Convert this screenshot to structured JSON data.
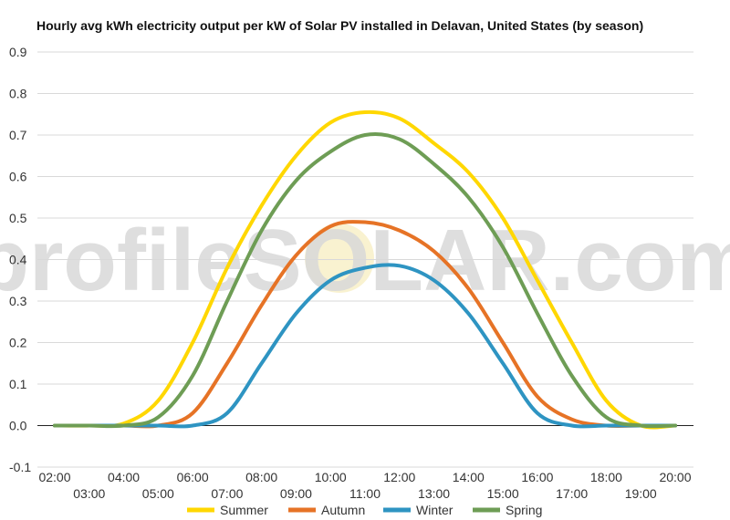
{
  "chart_data": {
    "type": "line",
    "title": "Hourly avg kWh electricity output per kW of Solar PV installed in Delavan, United States (by season)",
    "watermark": "profileSOLAR.com",
    "x": [
      "02:00",
      "03:00",
      "04:00",
      "05:00",
      "06:00",
      "07:00",
      "08:00",
      "09:00",
      "10:00",
      "11:00",
      "12:00",
      "13:00",
      "14:00",
      "15:00",
      "16:00",
      "17:00",
      "18:00",
      "19:00",
      "20:00"
    ],
    "ylim": [
      -0.1,
      0.9
    ],
    "yticks": [
      "-0.1",
      "0.0",
      "0.1",
      "0.2",
      "0.3",
      "0.4",
      "0.5",
      "0.6",
      "0.7",
      "0.8",
      "0.9"
    ],
    "grid": true,
    "legend": "bottom",
    "series": [
      {
        "name": "Summer",
        "color": "#FFD700",
        "values": [
          0,
          0,
          0.005,
          0.06,
          0.2,
          0.38,
          0.53,
          0.65,
          0.73,
          0.755,
          0.74,
          0.68,
          0.61,
          0.5,
          0.35,
          0.2,
          0.06,
          0,
          0
        ]
      },
      {
        "name": "Autumn",
        "color": "#E67326",
        "values": [
          0,
          0,
          0,
          0,
          0.03,
          0.15,
          0.29,
          0.41,
          0.48,
          0.49,
          0.47,
          0.42,
          0.33,
          0.2,
          0.07,
          0.015,
          0,
          0,
          0
        ]
      },
      {
        "name": "Winter",
        "color": "#2E94C2",
        "values": [
          0,
          0,
          0,
          0,
          0,
          0.03,
          0.15,
          0.27,
          0.35,
          0.38,
          0.385,
          0.35,
          0.27,
          0.15,
          0.03,
          0,
          0,
          0,
          0
        ]
      },
      {
        "name": "Spring",
        "color": "#6E9D55",
        "values": [
          0,
          0,
          0,
          0.02,
          0.12,
          0.3,
          0.47,
          0.59,
          0.66,
          0.7,
          0.69,
          0.63,
          0.55,
          0.43,
          0.27,
          0.12,
          0.02,
          0,
          0
        ]
      }
    ]
  }
}
